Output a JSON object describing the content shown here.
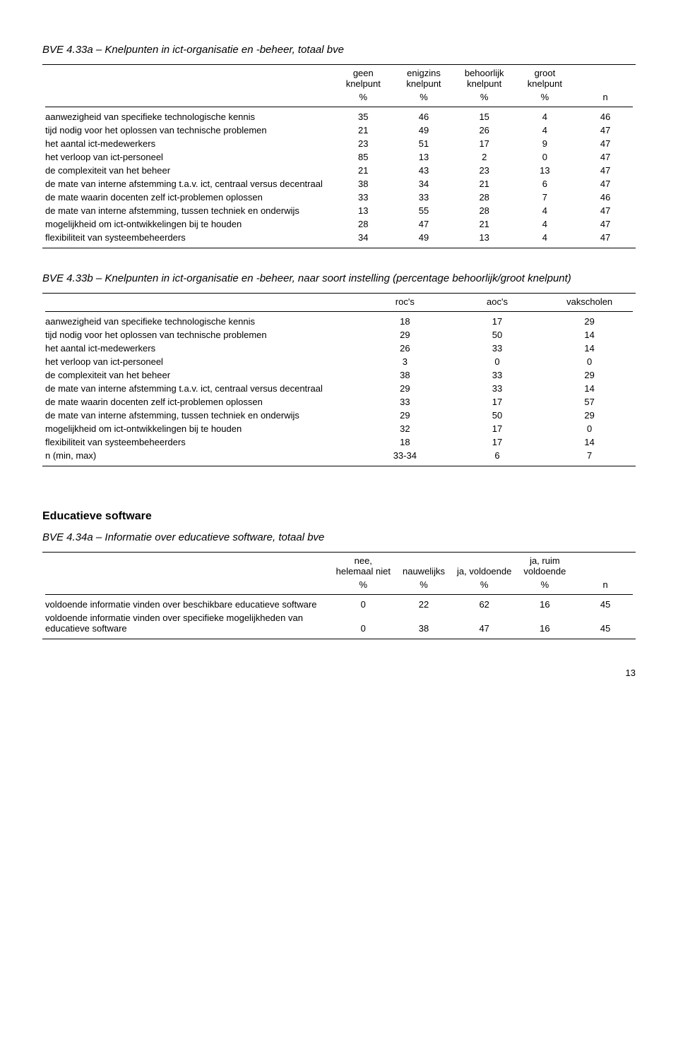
{
  "t33a": {
    "title": "BVE 4.33a – Knelpunten in ict-organisatie en -beheer, totaal bve",
    "cols": [
      "geen knelpunt",
      "enigzins knelpunt",
      "behoorlijk knelpunt",
      "groot knelpunt",
      ""
    ],
    "pctrow": [
      "%",
      "%",
      "%",
      "%",
      "n"
    ],
    "rows": [
      {
        "label": "aanwezigheid van specifieke technologische kennis",
        "v": [
          "35",
          "46",
          "15",
          "4",
          "46"
        ]
      },
      {
        "label": "tijd nodig voor het oplossen van technische problemen",
        "v": [
          "21",
          "49",
          "26",
          "4",
          "47"
        ]
      },
      {
        "label": "het aantal ict-medewerkers",
        "v": [
          "23",
          "51",
          "17",
          "9",
          "47"
        ]
      },
      {
        "label": "het verloop van ict-personeel",
        "v": [
          "85",
          "13",
          "2",
          "0",
          "47"
        ]
      },
      {
        "label": "de complexiteit van het beheer",
        "v": [
          "21",
          "43",
          "23",
          "13",
          "47"
        ]
      },
      {
        "label": "de mate van interne afstemming t.a.v. ict, centraal versus decentraal",
        "v": [
          "38",
          "34",
          "21",
          "6",
          "47"
        ]
      },
      {
        "label": "de mate waarin docenten zelf ict-problemen oplossen",
        "v": [
          "33",
          "33",
          "28",
          "7",
          "46"
        ]
      },
      {
        "label": "de mate van interne afstemming, tussen techniek en onderwijs",
        "v": [
          "13",
          "55",
          "28",
          "4",
          "47"
        ]
      },
      {
        "label": "mogelijkheid om ict-ontwikkelingen bij te houden",
        "v": [
          "28",
          "47",
          "21",
          "4",
          "47"
        ]
      },
      {
        "label": "flexibiliteit van systeembeheerders",
        "v": [
          "34",
          "49",
          "13",
          "4",
          "47"
        ]
      }
    ]
  },
  "t33b": {
    "title": "BVE 4.33b – Knelpunten in ict-organisatie en -beheer, naar soort instelling (percentage behoorlijk/groot knelpunt)",
    "cols": [
      "roc's",
      "aoc's",
      "vakscholen"
    ],
    "rows": [
      {
        "label": "aanwezigheid van specifieke technologische kennis",
        "v": [
          "18",
          "17",
          "29"
        ]
      },
      {
        "label": "tijd nodig voor het oplossen van technische problemen",
        "v": [
          "29",
          "50",
          "14"
        ]
      },
      {
        "label": "het aantal ict-medewerkers",
        "v": [
          "26",
          "33",
          "14"
        ]
      },
      {
        "label": "het verloop van ict-personeel",
        "v": [
          "3",
          "0",
          "0"
        ]
      },
      {
        "label": "de complexiteit van het beheer",
        "v": [
          "38",
          "33",
          "29"
        ]
      },
      {
        "label": "de mate van interne afstemming t.a.v. ict, centraal versus decentraal",
        "v": [
          "29",
          "33",
          "14"
        ]
      },
      {
        "label": "de mate waarin docenten zelf ict-problemen oplossen",
        "v": [
          "33",
          "17",
          "57"
        ]
      },
      {
        "label": "de mate van interne afstemming, tussen techniek en onderwijs",
        "v": [
          "29",
          "50",
          "29"
        ]
      },
      {
        "label": "mogelijkheid om ict-ontwikkelingen bij te houden",
        "v": [
          "32",
          "17",
          "0"
        ]
      },
      {
        "label": "flexibiliteit van systeembeheerders",
        "v": [
          "18",
          "17",
          "14"
        ]
      },
      {
        "label": "n (min, max)",
        "v": [
          "33-34",
          "6",
          "7"
        ]
      }
    ]
  },
  "eduHeading": "Educatieve software",
  "t34a": {
    "title": "BVE 4.34a – Informatie over educatieve software, totaal bve",
    "cols": [
      "nee, helemaal niet",
      "nauwelijks",
      "ja, voldoende",
      "ja, ruim voldoende",
      ""
    ],
    "pctrow": [
      "%",
      "%",
      "%",
      "%",
      "n"
    ],
    "rows": [
      {
        "label": "voldoende informatie vinden over beschikbare educatieve software",
        "v": [
          "0",
          "22",
          "62",
          "16",
          "45"
        ]
      },
      {
        "label": "voldoende informatie vinden over specifieke mogelijkheden van educatieve software",
        "v": [
          "0",
          "38",
          "47",
          "16",
          "45"
        ]
      }
    ]
  },
  "pageNumber": "13"
}
